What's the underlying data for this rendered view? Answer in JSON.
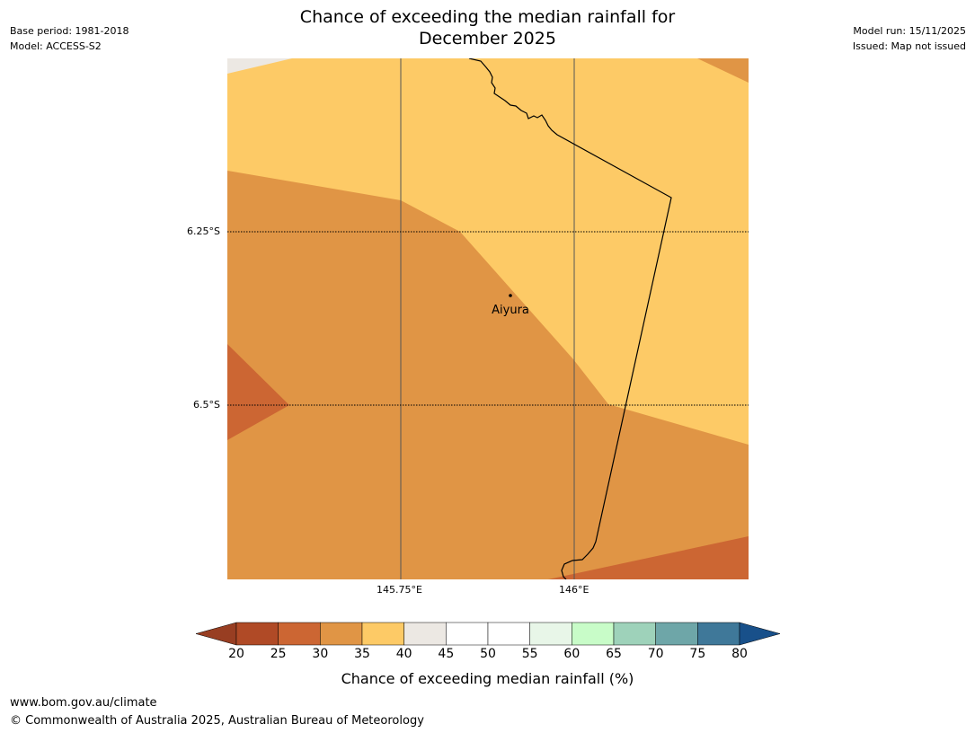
{
  "title": {
    "line1": "Chance of exceeding the median rainfall for",
    "line2": "December 2025"
  },
  "meta_left": {
    "base_period": "Base period: 1981-2018",
    "model": "Model: ACCESS-S2"
  },
  "meta_right": {
    "model_run": "Model run: 15/11/2025",
    "issued": "Issued: Map not issued"
  },
  "axes": {
    "lat_ticks": [
      "6.25°S",
      "6.5°S"
    ],
    "lon_ticks": [
      "145.75°E",
      "146°E"
    ]
  },
  "place": {
    "name": "Aiyura"
  },
  "colorbar": {
    "ticks": [
      "20",
      "25",
      "30",
      "35",
      "40",
      "45",
      "50",
      "55",
      "60",
      "65",
      "70",
      "75",
      "80"
    ],
    "colors": [
      "#b04a26",
      "#cc6633",
      "#e09545",
      "#fdca66",
      "#ece8e3",
      "#ffffff",
      "#ffffff",
      "#e8f6e8",
      "#c8fcc8",
      "#9ed2ba",
      "#6ea6a8",
      "#3f7899"
    ],
    "under_color": "#983e22",
    "over_color": "#18508a",
    "label": "Chance of exceeding median rainfall (%)"
  },
  "footer": {
    "url": "www.bom.gov.au/climate",
    "copyright": "© Commonwealth of Australia 2025, Australian Bureau of Meteorology"
  }
}
